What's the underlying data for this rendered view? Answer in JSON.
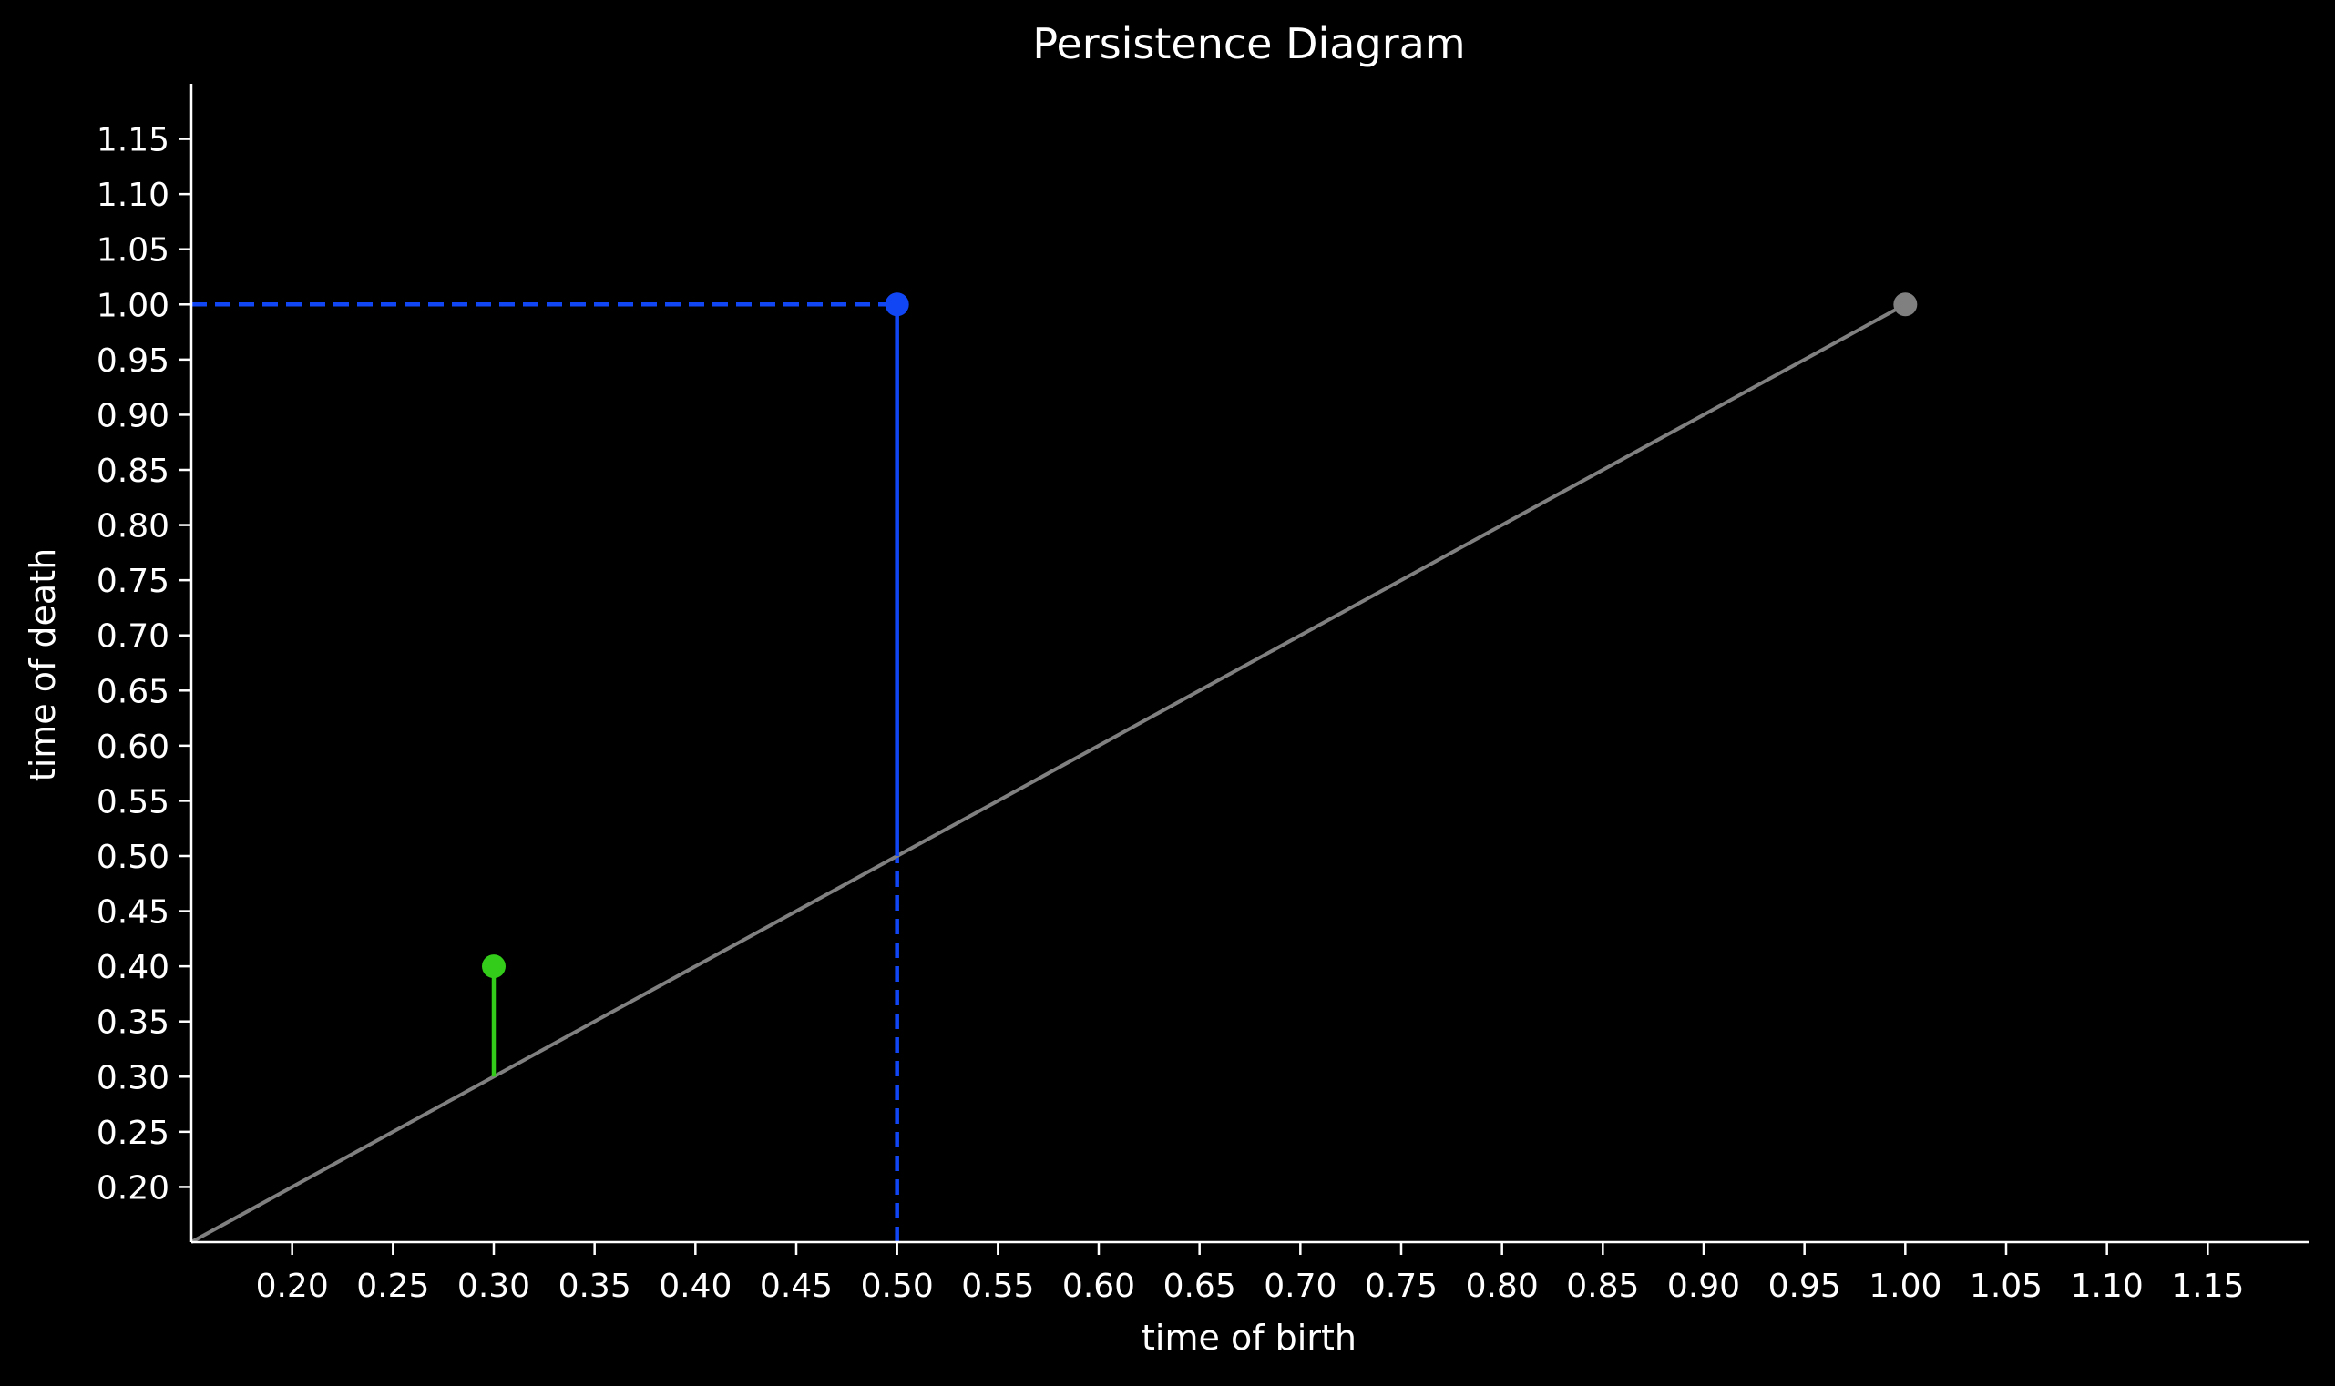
{
  "chart_data": {
    "type": "scatter",
    "title": "Persistence Diagram",
    "xlabel": "time of birth",
    "ylabel": "time of death",
    "xlim": [
      0.15,
      1.2
    ],
    "ylim": [
      0.15,
      1.2
    ],
    "xticks": [
      "0.20",
      "0.25",
      "0.30",
      "0.35",
      "0.40",
      "0.45",
      "0.50",
      "0.55",
      "0.60",
      "0.65",
      "0.70",
      "0.75",
      "0.80",
      "0.85",
      "0.90",
      "0.95",
      "1.00",
      "1.05",
      "1.10",
      "1.15"
    ],
    "yticks": [
      "0.20",
      "0.25",
      "0.30",
      "0.35",
      "0.40",
      "0.45",
      "0.50",
      "0.55",
      "0.60",
      "0.65",
      "0.70",
      "0.75",
      "0.80",
      "0.85",
      "0.90",
      "0.95",
      "1.00",
      "1.05",
      "1.10",
      "1.15"
    ],
    "grid": false,
    "background": "#000000",
    "axis_color": "#ffffff",
    "diagonal": {
      "from": [
        0.15,
        0.15
      ],
      "to": [
        1.0,
        1.0
      ],
      "color": "#808080"
    },
    "points": [
      {
        "birth": 0.3,
        "death": 0.4,
        "color": "#33cc1a",
        "stem": true,
        "guides": false
      },
      {
        "birth": 0.5,
        "death": 1.0,
        "color": "#1146f5",
        "stem": true,
        "guides": true
      },
      {
        "birth": 1.0,
        "death": 1.0,
        "color": "#808080",
        "stem": false,
        "guides": false
      }
    ]
  }
}
